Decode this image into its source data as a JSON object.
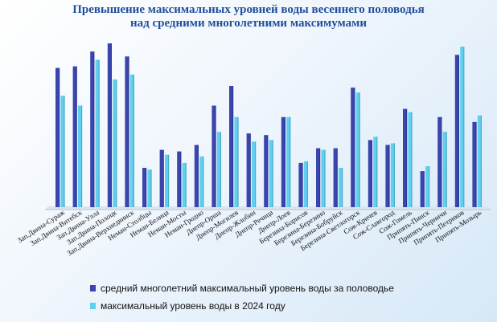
{
  "chart_data": {
    "type": "bar",
    "title": "Превышение максимальных уровней воды весеннего половодья над средними многолетними максимумами",
    "title_lines": [
      "Превышение максимальных уровней воды весеннего половодья",
      "над средними многолетними максимумами"
    ],
    "categories": [
      "Зап.Двина-Сураж",
      "Зап.Двина-Витебск",
      "Зап.Двина-Улла",
      "Зап.Двина-Полоцк",
      "Зап.Двина-Верхнедвинск",
      "Неман-Столбцы",
      "Неман-Белица",
      "Неман-Мосты",
      "Неман-Гродно",
      "Днепр-Орша",
      "Днепр-Могилев",
      "Днепр-Жлобин",
      "Днепр-Речица",
      "Днепр-Лоев",
      "Березина-Борисов",
      "Березина-Березино",
      "Березина-Бобруйск",
      "Березина-Светлогорск",
      "Сож-Кричев",
      "Сож-Славгород",
      "Сож-Гомель",
      "Припять-Пинск",
      "Припять-Черничи",
      "Припять-Петриков",
      "Припять-Мозырь"
    ],
    "series": [
      {
        "name": "средний многолетний максимальный уровень воды за половодье",
        "color": "#3a45b0",
        "values": [
          85,
          86,
          95,
          100,
          92,
          24,
          35,
          34,
          38,
          62,
          74,
          45,
          44,
          55,
          27,
          36,
          36,
          73,
          41,
          38,
          60,
          22,
          55,
          93,
          52
        ]
      },
      {
        "name": "максимальный уровень воды в 2024 году",
        "color": "#5fd0ef",
        "values": [
          68,
          62,
          90,
          78,
          81,
          23,
          32,
          27,
          31,
          46,
          55,
          40,
          41,
          55,
          28,
          35,
          24,
          70,
          43,
          39,
          58,
          25,
          46,
          98,
          56
        ]
      }
    ],
    "ylim": [
      0,
      100
    ],
    "grid": false,
    "legend_position": "bottom-left"
  }
}
